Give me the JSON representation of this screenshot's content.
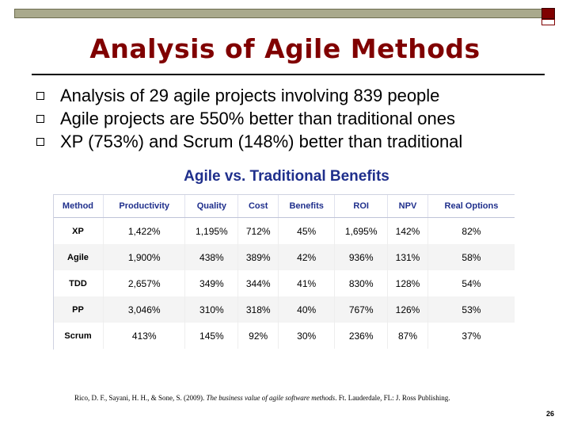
{
  "slide": {
    "title": "Analysis of Agile Methods",
    "bullets": [
      "Analysis of 29 agile projects involving 839 people",
      "Agile projects are 550% better than traditional ones",
      "XP (753%) and Scrum (148%) better than traditional"
    ],
    "page_number": "26"
  },
  "table": {
    "title": "Agile vs. Traditional Benefits",
    "headers": [
      "Method",
      "Productivity",
      "Quality",
      "Cost",
      "Benefits",
      "ROI",
      "NPV",
      "Real Options"
    ],
    "rows": [
      [
        "XP",
        "1,422%",
        "1,195%",
        "712%",
        "45%",
        "1,695%",
        "142%",
        "82%"
      ],
      [
        "Agile",
        "1,900%",
        "438%",
        "389%",
        "42%",
        "936%",
        "131%",
        "58%"
      ],
      [
        "TDD",
        "2,657%",
        "349%",
        "344%",
        "41%",
        "830%",
        "128%",
        "54%"
      ],
      [
        "PP",
        "3,046%",
        "310%",
        "318%",
        "40%",
        "767%",
        "126%",
        "53%"
      ],
      [
        "Scrum",
        "413%",
        "145%",
        "92%",
        "30%",
        "236%",
        "87%",
        "37%"
      ]
    ]
  },
  "citation": {
    "authors": "Rico, D. F., Sayani, H. H., & Sone, S. (2009).",
    "work": "The business value of agile software methods",
    "publisher": ". Ft. Lauderdale, FL: J. Ross Publishing."
  },
  "colors": {
    "title": "#800000",
    "table_heading": "#1f2f8c",
    "top_bar": "#a9a98c"
  }
}
